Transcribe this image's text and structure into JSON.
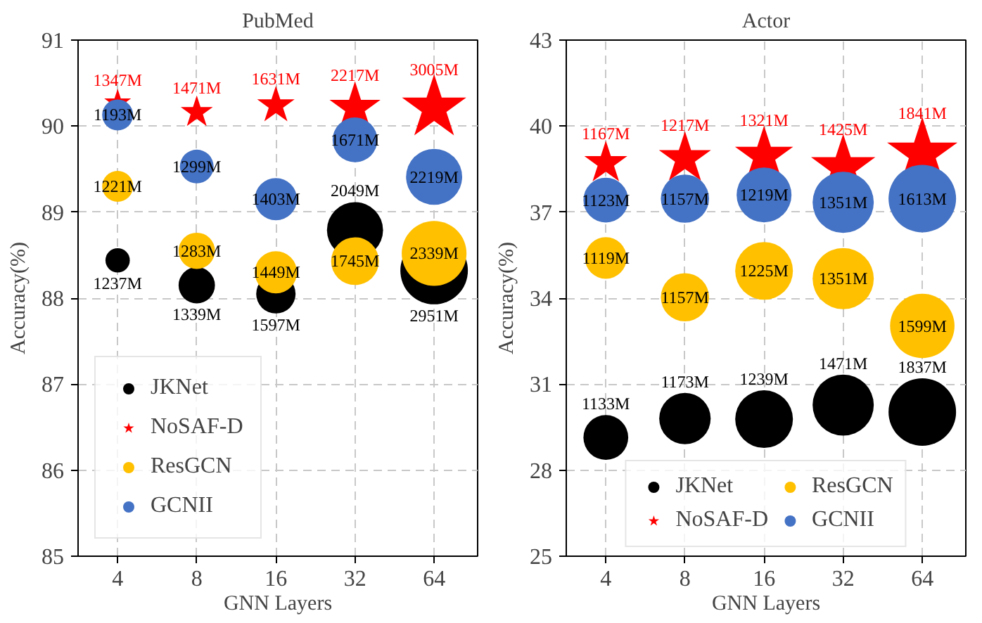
{
  "chart_data": [
    {
      "type": "bubble",
      "title": "PubMed",
      "xlabel": "GNN Layers",
      "ylabel": "Accuracy(%)",
      "categories": [
        "4",
        "8",
        "16",
        "32",
        "64"
      ],
      "ylim": [
        85,
        91
      ],
      "yticks": [
        85,
        86,
        87,
        88,
        89,
        90,
        91
      ],
      "grid": true,
      "legend": "bottom left",
      "series": [
        {
          "name": "JKNet",
          "color": "#000000",
          "marker": "circle",
          "values": [
            88.44,
            88.15,
            88.05,
            88.79,
            88.32
          ],
          "sizes": [
            0.13,
            0.29,
            0.34,
            0.69,
            1
          ]
        },
        {
          "name": "NoSAF-D",
          "color": "#ff0000",
          "marker": "star",
          "values": [
            90.27,
            90.16,
            90.24,
            90.21,
            90.21
          ],
          "sizes": [
            0.062,
            0.089,
            0.121,
            0.224,
            0.357
          ]
        },
        {
          "name": "ResGCN",
          "color": "#ffc000",
          "marker": "circle",
          "values": [
            89.3,
            88.55,
            88.3,
            88.43,
            88.52
          ],
          "sizes": [
            0.21,
            0.29,
            0.39,
            0.5,
            0.92
          ]
        },
        {
          "name": "GCNII",
          "color": "#4472c4",
          "marker": "circle",
          "values": [
            90.13,
            89.53,
            89.15,
            89.84,
            89.41
          ],
          "sizes": [
            0.21,
            0.25,
            0.39,
            0.44,
            0.69
          ]
        }
      ],
      "annotations": [
        {
          "text": "1347M",
          "x": "4",
          "y": 90.27
        },
        {
          "text": "1471M",
          "x": "8",
          "y": 90.16
        },
        {
          "text": "1631M",
          "x": "16",
          "y": 90.24
        },
        {
          "text": "2217M",
          "x": "32",
          "y": 90.21
        },
        {
          "text": "3005M",
          "x": "64",
          "y": 90.21
        },
        {
          "text": "1193M",
          "x": "4",
          "y": 90.13
        },
        {
          "text": "1299M",
          "x": "8",
          "y": 89.53
        },
        {
          "text": "1403M",
          "x": "16",
          "y": 89.15
        },
        {
          "text": "1671M",
          "x": "32",
          "y": 89.84
        },
        {
          "text": "2219M",
          "x": "64",
          "y": 89.41
        },
        {
          "text": "1221M",
          "x": "4",
          "y": 89.3
        },
        {
          "text": "1283M",
          "x": "8",
          "y": 88.55
        },
        {
          "text": "1449M",
          "x": "16",
          "y": 88.3
        },
        {
          "text": "1745M",
          "x": "32",
          "y": 88.43
        },
        {
          "text": "2339M",
          "x": "64",
          "y": 88.52
        },
        {
          "text": "1237M",
          "x": "4",
          "y": 88.44
        },
        {
          "text": "1339M",
          "x": "8",
          "y": 88.15
        },
        {
          "text": "1597M",
          "x": "16",
          "y": 88.05
        },
        {
          "text": "2049M",
          "x": "32",
          "y": 88.79
        },
        {
          "text": "2951M",
          "x": "64",
          "y": 88.32
        }
      ]
    },
    {
      "type": "bubble",
      "title": "Actor",
      "xlabel": "GNN Layers",
      "ylabel": "Accuracy(%)",
      "categories": [
        "4",
        "8",
        "16",
        "32",
        "64"
      ],
      "ylim": [
        25,
        43
      ],
      "yticks": [
        25,
        28,
        31,
        34,
        37,
        40,
        43
      ],
      "grid": true,
      "legend": "bottom",
      "series": [
        {
          "name": "JKNet",
          "color": "#000000",
          "marker": "circle",
          "values": [
            29.14,
            29.8,
            29.78,
            30.27,
            30.03
          ],
          "sizes": [
            0.44,
            0.58,
            0.73,
            0.82,
            1
          ]
        },
        {
          "name": "NoSAF-D",
          "color": "#ff0000",
          "marker": "star",
          "values": [
            38.71,
            38.87,
            38.95,
            38.55,
            39.03
          ],
          "sizes": [
            0.159,
            0.234,
            0.292,
            0.357,
            0.428
          ]
        },
        {
          "name": "ResGCN",
          "color": "#ffc000",
          "marker": "circle",
          "values": [
            35.4,
            34.03,
            34.95,
            34.68,
            33.03
          ],
          "sizes": [
            0.38,
            0.51,
            0.73,
            0.82,
            0.91
          ]
        },
        {
          "name": "GCNII",
          "color": "#4472c4",
          "marker": "circle",
          "values": [
            37.42,
            37.47,
            37.6,
            37.34,
            37.47
          ],
          "sizes": [
            0.44,
            0.51,
            0.66,
            0.82,
            1
          ]
        }
      ],
      "annotations": [
        {
          "text": "1167M",
          "x": "4",
          "y": 38.71
        },
        {
          "text": "1217M",
          "x": "8",
          "y": 38.87
        },
        {
          "text": "1321M",
          "x": "16",
          "y": 38.95
        },
        {
          "text": "1425M",
          "x": "32",
          "y": 38.55
        },
        {
          "text": "1841M",
          "x": "64",
          "y": 39.03
        },
        {
          "text": "1123M",
          "x": "4",
          "y": 37.42
        },
        {
          "text": "1157M",
          "x": "8",
          "y": 37.47
        },
        {
          "text": "1219M",
          "x": "16",
          "y": 37.6
        },
        {
          "text": "1351M",
          "x": "32",
          "y": 37.34
        },
        {
          "text": "1613M",
          "x": "64",
          "y": 37.47
        },
        {
          "text": "1119M",
          "x": "4",
          "y": 35.4
        },
        {
          "text": "1157M",
          "x": "8",
          "y": 34.03
        },
        {
          "text": "1225M",
          "x": "16",
          "y": 34.95
        },
        {
          "text": "1351M",
          "x": "32",
          "y": 34.68
        },
        {
          "text": "1599M",
          "x": "64",
          "y": 33.03
        },
        {
          "text": "1133M",
          "x": "4",
          "y": 29.14
        },
        {
          "text": "1173M",
          "x": "8",
          "y": 29.8
        },
        {
          "text": "1239M",
          "x": "16",
          "y": 29.78
        },
        {
          "text": "1471M",
          "x": "32",
          "y": 30.27
        },
        {
          "text": "1837M",
          "x": "64",
          "y": 30.03
        }
      ]
    }
  ]
}
